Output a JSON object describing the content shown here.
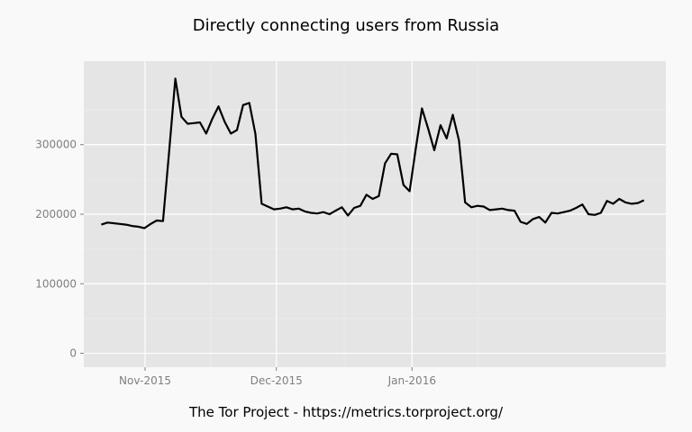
{
  "chart_data": {
    "type": "line",
    "title": "Directly connecting users from Russia",
    "caption": "The Tor Project - https://metrics.torproject.org/",
    "xlabel": "",
    "ylabel": "",
    "x_start": "2015-10-22",
    "x_end": "2016-02-23",
    "xlim": [
      "2015-10-18",
      "2016-02-28"
    ],
    "ylim": [
      -20000,
      420000
    ],
    "y_ticks": [
      0,
      100000,
      200000,
      300000
    ],
    "y_tick_labels": [
      "0",
      "100000",
      "200000",
      "300000"
    ],
    "x_ticks": [
      "2015-11-01",
      "2015-12-01",
      "2016-01-01"
    ],
    "x_tick_labels": [
      "Nov-2015",
      "Dec-2015",
      "Jan-2016"
    ],
    "grid": true,
    "colors": {
      "line": "#000000",
      "panel": "#e5e5e5",
      "grid_major": "#ffffff",
      "grid_minor": "#f0f0f0",
      "background": "#f9f9f9"
    },
    "series": [
      {
        "values": [
          185000,
          188000,
          187000,
          186000,
          185000,
          183000,
          182000,
          180000,
          186000,
          191000,
          190000,
          290000,
          395000,
          340000,
          330000,
          331000,
          332000,
          316000,
          337000,
          355000,
          333000,
          316000,
          321000,
          357000,
          360000,
          315000,
          215000,
          211000,
          207000,
          208000,
          210000,
          207000,
          208000,
          204000,
          202000,
          201000,
          203000,
          200000,
          205000,
          210000,
          198000,
          209000,
          212000,
          228000,
          222000,
          226000,
          273000,
          287000,
          286000,
          242000,
          233000,
          295000,
          352000,
          323000,
          292000,
          328000,
          309000,
          343000,
          306000,
          217000,
          210000,
          212000,
          211000,
          206000,
          207000,
          208000,
          206000,
          205000,
          189000,
          186000,
          193000,
          196000,
          188000,
          202000,
          201000,
          203000,
          205000,
          209000,
          214000,
          200000,
          199000,
          202000,
          219000,
          215000,
          222000,
          217000,
          215000,
          216000,
          220000
        ]
      }
    ]
  }
}
